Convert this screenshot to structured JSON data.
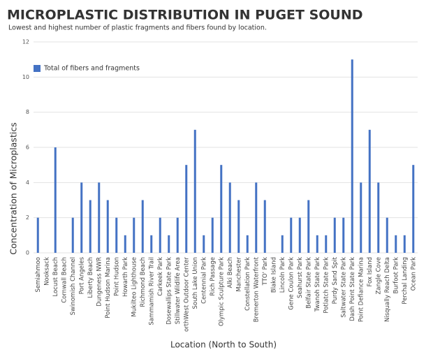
{
  "chart_data": {
    "type": "bar",
    "title": "MICROPLASTIC DISTRIBUTION IN PUGET SOUND",
    "subtitle": "Lowest and highest number of plastic fragments and fibers found by location.",
    "x_label": "Location (North to South)",
    "y_label": "Concentration of Microplastics",
    "categories": [
      "Semiahmoo",
      "Nooksack",
      "Locust Beach",
      "Cornwall Beach",
      "Swinomish Channel",
      "Port Angeles",
      "Liberty Beach",
      "Dungeness NWR",
      "Point Hudson Marina",
      "Point Hudson",
      "Howarth Park",
      "Mukilteo Lighthouse",
      "Richmond Beach",
      "Sammamish River Trail",
      "Carkeek Park",
      "Dosewallips State Park",
      "Stillwater Wildlife Area",
      "orthWest Outdoor Center",
      "South Lake Union",
      "Centennial Park",
      "Rich Passage",
      "Olympic Sculpture Park",
      "Alki Beach",
      "Manchester",
      "Constellation Park",
      "Bremerton Waterfront",
      "TTO' Park",
      "Blake Island",
      "Lincoln Park",
      "Gene Coulon Park",
      "Seahurst Park",
      "Belfair State Park",
      "Twanoh State Park",
      "Potlatch State Park",
      "Purdy Sand Spit",
      "Saltwater State Park",
      "Dash Point State Park",
      "Point Defiance Marina",
      "Fox Island",
      "Zangle Cove",
      "Nisqually Reach Delta",
      "Burfoot Park",
      "Perchal Landing",
      "Ocean Park"
    ],
    "series": [
      {
        "name": "Total of fibers and fragments",
        "color": "#4472c4",
        "values": [
          2,
          0,
          6,
          0,
          2,
          4,
          3,
          4,
          3,
          2,
          1,
          2,
          3,
          1,
          2,
          1,
          2,
          5,
          7,
          1,
          2,
          5,
          4,
          3,
          1,
          4,
          3,
          0,
          1,
          2,
          2,
          3,
          1,
          1,
          2,
          2,
          11,
          4,
          7,
          4,
          2,
          1,
          1,
          5
        ]
      }
    ],
    "ylim": [
      0,
      12
    ],
    "yticks": [
      0,
      2,
      4,
      6,
      8,
      10,
      12
    ],
    "grid": true,
    "legend": "top-left"
  }
}
